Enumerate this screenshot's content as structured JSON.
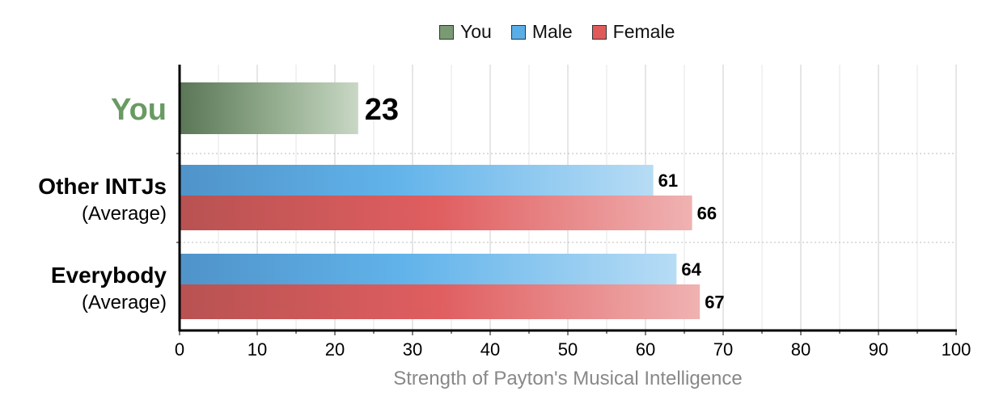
{
  "colors": {
    "you": "#7a9a74",
    "male": "#5aaee8",
    "female": "#e05a5a",
    "you_label": "#6a9a64",
    "xlabel": "#888888"
  },
  "chart_data": {
    "type": "bar",
    "orientation": "horizontal",
    "legend": {
      "position": "top",
      "entries": [
        "You",
        "Male",
        "Female"
      ]
    },
    "categories": [
      {
        "label": "You",
        "sublabel": ""
      },
      {
        "label": "Other INTJs",
        "sublabel": "(Average)"
      },
      {
        "label": "Everybody",
        "sublabel": "(Average)"
      }
    ],
    "series": [
      {
        "name": "You",
        "values": [
          23,
          null,
          null
        ]
      },
      {
        "name": "Male",
        "values": [
          null,
          61,
          64
        ]
      },
      {
        "name": "Female",
        "values": [
          null,
          66,
          67
        ]
      }
    ],
    "xlim": [
      0,
      100
    ],
    "xticks": [
      0,
      10,
      20,
      30,
      40,
      50,
      60,
      70,
      80,
      90,
      100
    ],
    "xlabel": "Strength of Payton's Musical Intelligence",
    "grid": true
  }
}
